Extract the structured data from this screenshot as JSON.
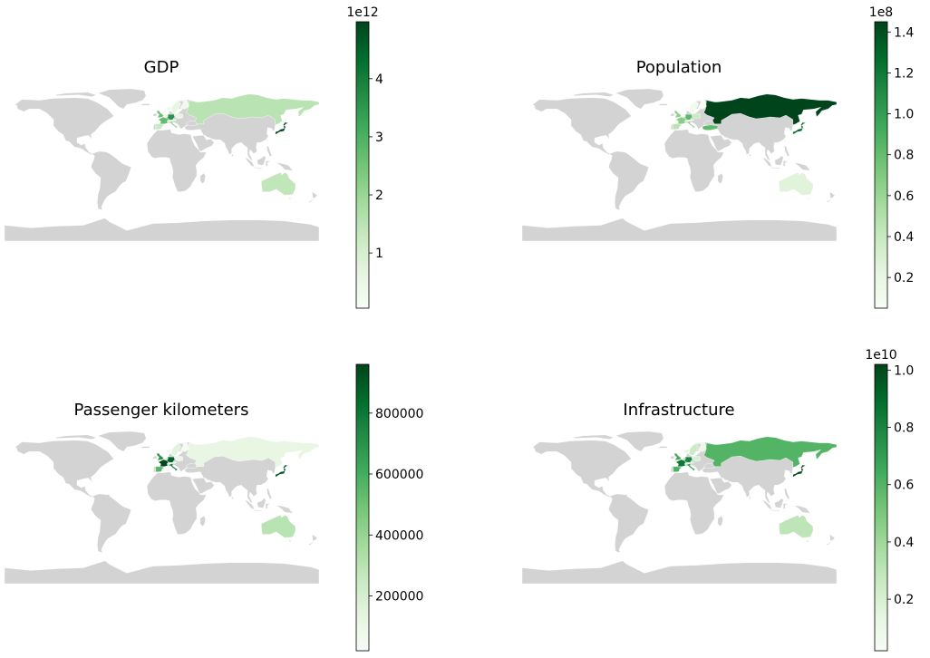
{
  "chart_data": [
    {
      "type": "choropleth",
      "title": "GDP",
      "colormap": "Greens",
      "missing_color": "#d3d3d3",
      "colorbar": {
        "min": 0.05,
        "max": 4.98,
        "ticks": [
          1,
          2,
          3,
          4
        ],
        "tick_labels": [
          "1",
          "2",
          "3",
          "4"
        ],
        "offset_text": "1e12"
      },
      "regions": [
        {
          "name": "Japan",
          "value": 4.9
        },
        {
          "name": "Germany",
          "value": 3.6
        },
        {
          "name": "France",
          "value": 2.7
        },
        {
          "name": "United Kingdom",
          "value": 2.6
        },
        {
          "name": "Italy",
          "value": 2.0
        },
        {
          "name": "Russia",
          "value": 1.5
        },
        {
          "name": "Australia",
          "value": 1.4
        },
        {
          "name": "Spain",
          "value": 1.3
        },
        {
          "name": "Netherlands",
          "value": 0.9
        },
        {
          "name": "Switzerland",
          "value": 0.7
        },
        {
          "name": "Poland",
          "value": 0.6
        },
        {
          "name": "Sweden",
          "value": 0.55
        },
        {
          "name": "Belgium",
          "value": 0.5
        },
        {
          "name": "Austria",
          "value": 0.45
        },
        {
          "name": "Norway",
          "value": 0.4
        },
        {
          "name": "Finland",
          "value": 0.27
        },
        {
          "name": "Trinidad and Tobago",
          "value": 0.05
        }
      ]
    },
    {
      "type": "choropleth",
      "title": "Population",
      "colormap": "Greens",
      "missing_color": "#d3d3d3",
      "colorbar": {
        "min": 0.05,
        "max": 1.45,
        "ticks": [
          0.2,
          0.4,
          0.6,
          0.8,
          1.0,
          1.2,
          1.4
        ],
        "tick_labels": [
          "0.2",
          "0.4",
          "0.6",
          "0.8",
          "1.0",
          "1.2",
          "1.4"
        ],
        "offset_text": "1e8"
      },
      "regions": [
        {
          "name": "Russia",
          "value": 1.45
        },
        {
          "name": "Japan",
          "value": 1.27
        },
        {
          "name": "Germany",
          "value": 0.83
        },
        {
          "name": "Turkey",
          "value": 0.82
        },
        {
          "name": "France",
          "value": 0.67
        },
        {
          "name": "United Kingdom",
          "value": 0.66
        },
        {
          "name": "Italy",
          "value": 0.6
        },
        {
          "name": "Spain",
          "value": 0.47
        },
        {
          "name": "Poland",
          "value": 0.38
        },
        {
          "name": "Australia",
          "value": 0.25
        },
        {
          "name": "Netherlands",
          "value": 0.17
        },
        {
          "name": "Sweden",
          "value": 0.1
        },
        {
          "name": "Austria",
          "value": 0.09
        },
        {
          "name": "Switzerland",
          "value": 0.085
        },
        {
          "name": "Finland",
          "value": 0.055
        },
        {
          "name": "Norway",
          "value": 0.053
        }
      ]
    },
    {
      "type": "choropleth",
      "title": "Passenger kilometers",
      "colormap": "Greens",
      "missing_color": "#d3d3d3",
      "colorbar": {
        "min": 20000,
        "max": 960000,
        "ticks": [
          200000,
          400000,
          600000,
          800000
        ],
        "tick_labels": [
          "200000",
          "400000",
          "600000",
          "800000"
        ],
        "offset_text": ""
      },
      "regions": [
        {
          "name": "France",
          "value": 950000
        },
        {
          "name": "Japan",
          "value": 900000
        },
        {
          "name": "Germany",
          "value": 870000
        },
        {
          "name": "Italy",
          "value": 780000
        },
        {
          "name": "United Kingdom",
          "value": 700000
        },
        {
          "name": "Spain",
          "value": 560000
        },
        {
          "name": "Trinidad and Tobago",
          "value": 550000
        },
        {
          "name": "Australia",
          "value": 300000
        },
        {
          "name": "Netherlands",
          "value": 250000
        },
        {
          "name": "Switzerland",
          "value": 200000
        },
        {
          "name": "Sweden",
          "value": 150000
        },
        {
          "name": "Russia",
          "value": 120000
        },
        {
          "name": "Poland",
          "value": 100000
        },
        {
          "name": "Austria",
          "value": 80000
        },
        {
          "name": "Norway",
          "value": 70000
        },
        {
          "name": "Finland",
          "value": 40000
        }
      ]
    },
    {
      "type": "choropleth",
      "title": "Infrastructure",
      "colormap": "Greens",
      "missing_color": "#d3d3d3",
      "colorbar": {
        "min": 0.02,
        "max": 1.02,
        "ticks": [
          0.2,
          0.4,
          0.6,
          0.8,
          1.0
        ],
        "tick_labels": [
          "0.2",
          "0.4",
          "0.6",
          "0.8",
          "1.0"
        ],
        "offset_text": "1e10"
      },
      "regions": [
        {
          "name": "Japan",
          "value": 1.0
        },
        {
          "name": "France",
          "value": 0.85
        },
        {
          "name": "Germany",
          "value": 0.8
        },
        {
          "name": "Italy",
          "value": 0.7
        },
        {
          "name": "United Kingdom",
          "value": 0.65
        },
        {
          "name": "Spain",
          "value": 0.62
        },
        {
          "name": "Russia",
          "value": 0.6
        },
        {
          "name": "Trinidad and Tobago",
          "value": 0.5
        },
        {
          "name": "Netherlands",
          "value": 0.35
        },
        {
          "name": "Switzerland",
          "value": 0.35
        },
        {
          "name": "Australia",
          "value": 0.3
        },
        {
          "name": "Sweden",
          "value": 0.25
        },
        {
          "name": "Austria",
          "value": 0.22
        },
        {
          "name": "Poland",
          "value": 0.2
        },
        {
          "name": "Norway",
          "value": 0.15
        },
        {
          "name": "Finland",
          "value": 0.1
        }
      ]
    }
  ]
}
